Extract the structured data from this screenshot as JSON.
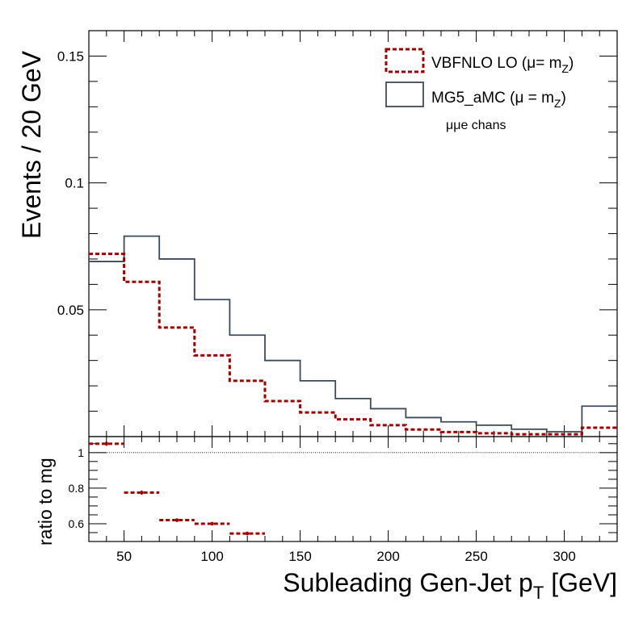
{
  "chart_data": [
    {
      "type": "line",
      "title": "",
      "ylabel": "Events / 20 GeV",
      "xlim": [
        30,
        330
      ],
      "ylim": [
        0,
        0.16
      ],
      "yticks": [
        0.05,
        0.1,
        0.15
      ],
      "ytick_labels": [
        "0.05",
        "0.1",
        "0.15"
      ],
      "bin_edges": [
        30,
        50,
        70,
        90,
        110,
        130,
        150,
        170,
        190,
        210,
        230,
        250,
        270,
        290,
        310,
        330
      ],
      "series": [
        {
          "name": "VBFNLO LO",
          "label_main": "VBFNLO LO (",
          "label_mu": "μ",
          "label_mid": "= m",
          "label_sub": "Z",
          "label_end": ")",
          "style": "dashed",
          "color": "#a00000",
          "values": [
            0.072,
            0.061,
            0.043,
            0.032,
            0.022,
            0.014,
            0.0095,
            0.0068,
            0.0045,
            0.0028,
            0.0018,
            0.0013,
            0.0009,
            0.0009,
            0.0035
          ]
        },
        {
          "name": "MG5_aMC",
          "label_main": "MG5_aMC (",
          "label_mu": "μ",
          "label_mid": " = m",
          "label_sub": "Z",
          "label_end": ")",
          "style": "solid",
          "color": "#3b4a5c",
          "values": [
            0.069,
            0.079,
            0.07,
            0.054,
            0.04,
            0.03,
            0.022,
            0.015,
            0.011,
            0.0075,
            0.0058,
            0.0045,
            0.0029,
            0.0019,
            0.012
          ]
        }
      ],
      "annotation": "μμe chans"
    },
    {
      "type": "scatter",
      "ylabel": "ratio to mg",
      "xlabel_main": "Subleading Gen-Jet p",
      "xlabel_sub": "T",
      "xlabel_end": " [GeV]",
      "xlim": [
        30,
        330
      ],
      "ylim": [
        0.5,
        1.09
      ],
      "yticks": [
        0.6,
        0.8,
        1
      ],
      "ytick_labels": [
        "0.6",
        "0.8",
        "1"
      ],
      "xticks": [
        50,
        100,
        150,
        200,
        250,
        300
      ],
      "xtick_labels": [
        "50",
        "100",
        "150",
        "200",
        "250",
        "300"
      ],
      "reference_line": 1,
      "points": [
        {
          "x": 40,
          "xerr": 10,
          "y": 1.05,
          "yerr": 0.012
        },
        {
          "x": 60,
          "xerr": 10,
          "y": 0.775,
          "yerr": 0.012
        },
        {
          "x": 80,
          "xerr": 10,
          "y": 0.62,
          "yerr": 0.01
        },
        {
          "x": 100,
          "xerr": 10,
          "y": 0.6,
          "yerr": 0.01
        },
        {
          "x": 120,
          "xerr": 10,
          "y": 0.545,
          "yerr": 0.01
        }
      ],
      "color": "#a00000"
    }
  ]
}
